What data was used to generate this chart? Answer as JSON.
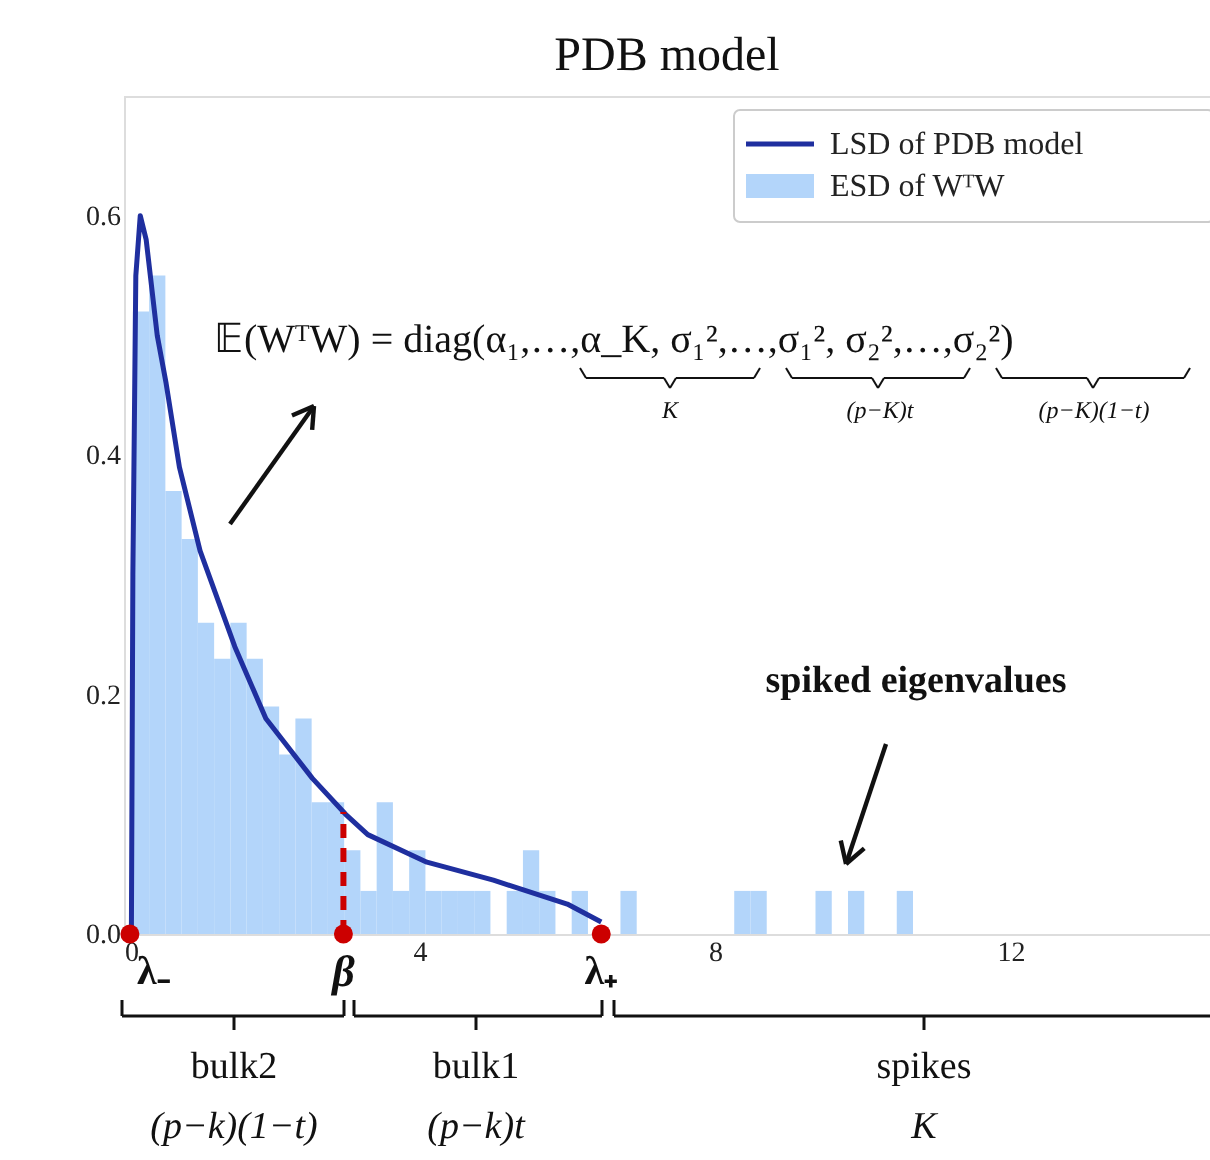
{
  "chart_data": {
    "type": "histogram",
    "title": "PDB model",
    "series": [
      {
        "name": "ESD of WᵀW",
        "color": "#b3d5fa",
        "bins": [
          0.12,
          0.34,
          0.56,
          0.78,
          1.0,
          1.22,
          1.44,
          1.66,
          1.88,
          2.1,
          2.32,
          2.54,
          2.76,
          2.98,
          3.2,
          3.42,
          3.64,
          3.86,
          4.08,
          4.3,
          4.52,
          4.74,
          4.96,
          5.18,
          5.4,
          5.62,
          5.84,
          6.06,
          6.28,
          6.5,
          6.72,
          6.94,
          7.16,
          7.38,
          7.6,
          7.82,
          8.04,
          8.26,
          8.48,
          8.7,
          8.92,
          9.14,
          9.36,
          9.58,
          9.8,
          10.02,
          10.24,
          10.46,
          10.68
        ],
        "values": [
          0.52,
          0.55,
          0.37,
          0.33,
          0.26,
          0.23,
          0.26,
          0.23,
          0.19,
          0.15,
          0.18,
          0.11,
          0.11,
          0.07,
          0.036,
          0.11,
          0.036,
          0.07,
          0.036,
          0.036,
          0.036,
          0.036,
          0,
          0.036,
          0.07,
          0.036,
          0,
          0.036,
          0,
          0,
          0.036,
          0,
          0,
          0,
          0,
          0,
          0,
          0.036,
          0.036,
          0,
          0,
          0,
          0.036,
          0,
          0.036,
          0,
          0,
          0.036
        ]
      },
      {
        "name": "LSD of PDB model",
        "type": "line",
        "color": "#1f2f9f",
        "x": [
          0.1,
          0.12,
          0.16,
          0.22,
          0.3,
          0.45,
          0.57,
          0.75,
          1.03,
          1.5,
          1.92,
          2.55,
          3.0,
          3.3,
          4.1,
          5.0,
          6.0,
          6.46
        ],
        "values": [
          0,
          0.3,
          0.55,
          0.6,
          0.58,
          0.5,
          0.46,
          0.39,
          0.32,
          0.24,
          0.18,
          0.13,
          0.1,
          0.083,
          0.06,
          0.045,
          0.025,
          0.01
        ]
      },
      {
        "type": "scatter",
        "marker": "circle",
        "color": "#cc0000",
        "x": [
          0.08,
          2.97,
          6.46
        ],
        "values": [
          0,
          0,
          0
        ]
      }
    ],
    "ref_lines": [
      {
        "axis": "x",
        "value": 2.97,
        "color": "#cc0000",
        "line_style": "dashed"
      }
    ],
    "xlim": [
      0,
      14.7
    ],
    "ylim": [
      0,
      0.7
    ],
    "xticks": [
      0,
      4,
      8,
      12
    ],
    "yticks": [
      {
        "value": 0,
        "label": "0.0"
      },
      0.2,
      0.4,
      0.6
    ],
    "legend": "top right",
    "grid": false,
    "annotations": [
      "𝔼(WᵀW) = diag(α₁,…,α_K, σ₁²,…,σ₁², σ₂²,…,σ₂²)",
      "K",
      "(p−K)t",
      "(p−K)(1−t)",
      "spiked eigenvalues",
      {
        "text": "λ₋",
        "x": 0.08,
        "y": 0
      },
      {
        "text": "β",
        "x": 2.97,
        "y": 0
      },
      {
        "text": "λ₊",
        "x": 6.46,
        "y": 0
      },
      "bulk2",
      "(p−k)(1−t)",
      "bulk1",
      "(p−k)t",
      "spikes",
      "K"
    ]
  }
}
